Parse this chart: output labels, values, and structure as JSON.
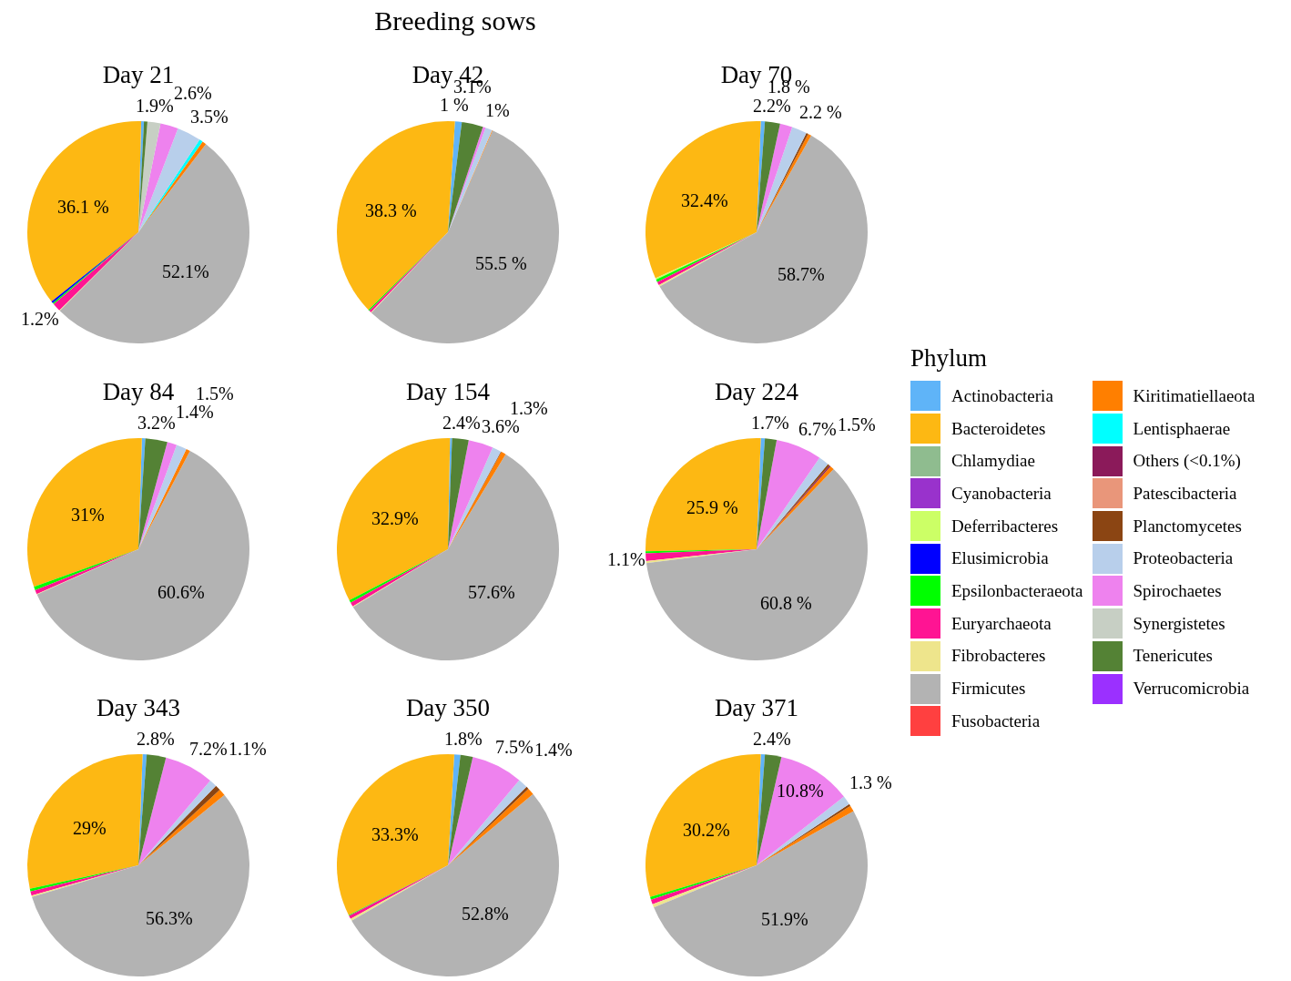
{
  "chart_data": {
    "type": "pie",
    "title": "Breeding sows",
    "legend": "right",
    "legend_title": "Phylum",
    "categories": [
      "Actinobacteria",
      "Bacteroidetes",
      "Chlamydiae",
      "Cyanobacteria",
      "Deferribacteres",
      "Elusimicrobia",
      "Epsilonbacteraeota",
      "Euryarchaeota",
      "Fibrobacteres",
      "Firmicutes",
      "Fusobacteria",
      "Kiritimatiellaeota",
      "Lentisphaerae",
      "Others (<0.1%)",
      "Patescibacteria",
      "Planctomycetes",
      "Proteobacteria",
      "Spirochaetes",
      "Synergistetes",
      "Tenericutes",
      "Verrucomicrobia"
    ],
    "colors": [
      "#5fb4f8",
      "#fdb813",
      "#8fbc8f",
      "#9932cc",
      "#ccff66",
      "#0000ff",
      "#00ff00",
      "#ff1493",
      "#eee58c",
      "#b3b3b3",
      "#ff4040",
      "#ff7f00",
      "#00ffff",
      "#8b1a5a",
      "#e9967a",
      "#8b4513",
      "#b8cfeb",
      "#ee82ee",
      "#c7cfc4",
      "#548235",
      "#9b30ff"
    ],
    "series": [
      {
        "name": "Day 21",
        "values": [
          0.4,
          36.1,
          0,
          0,
          0,
          0.3,
          0.2,
          1.2,
          0.1,
          52.1,
          0,
          0.6,
          0.5,
          0,
          0,
          0,
          3.5,
          2.6,
          1.9,
          0.5,
          0
        ],
        "value_labels": [
          null,
          "36.1 %",
          null,
          null,
          null,
          null,
          null,
          "1.2%",
          null,
          "52.1%",
          null,
          null,
          null,
          null,
          null,
          null,
          "3.5%",
          "2.6%",
          "1.9%",
          null,
          null
        ]
      },
      {
        "name": "Day 42",
        "values": [
          1,
          38.3,
          0,
          0,
          0,
          0,
          0.2,
          0.3,
          0.1,
          55.5,
          0,
          0.1,
          0,
          0,
          0,
          0,
          1,
          0.4,
          0,
          3.1,
          0
        ],
        "value_labels": [
          "1 %",
          "38.3 %",
          null,
          null,
          null,
          null,
          null,
          null,
          null,
          "55.5 %",
          null,
          null,
          null,
          null,
          null,
          null,
          "1%",
          null,
          null,
          "3.1%",
          null
        ]
      },
      {
        "name": "Day 70",
        "values": [
          0.6,
          32.4,
          0,
          0,
          0.2,
          0,
          0.4,
          0.5,
          0.2,
          58.7,
          0,
          0.5,
          0,
          0,
          0,
          0.3,
          2.2,
          1.8,
          0,
          2.2,
          0
        ],
        "value_labels": [
          null,
          "32.4%",
          null,
          null,
          null,
          null,
          null,
          null,
          null,
          "58.7%",
          null,
          null,
          null,
          null,
          null,
          null,
          "2.2 %",
          "1.8 %",
          null,
          "2.2%",
          null
        ]
      },
      {
        "name": "Day 84",
        "values": [
          0.5,
          31,
          0,
          0,
          0,
          0,
          0.5,
          0.6,
          0.1,
          60.6,
          0,
          0.6,
          0,
          0,
          0,
          0,
          1.5,
          1.4,
          0,
          3.2,
          0
        ],
        "value_labels": [
          null,
          "31%",
          null,
          null,
          null,
          null,
          null,
          null,
          null,
          "60.6%",
          null,
          null,
          null,
          null,
          null,
          null,
          "1.5%",
          "1.4%",
          null,
          "3.2%",
          null
        ]
      },
      {
        "name": "Day 154",
        "values": [
          0.3,
          32.9,
          0,
          0,
          0,
          0,
          0.4,
          0.6,
          0.1,
          57.6,
          0,
          0.7,
          0,
          0,
          0,
          0.1,
          1.3,
          3.6,
          0,
          2.4,
          0
        ],
        "value_labels": [
          null,
          "32.9%",
          null,
          null,
          null,
          null,
          null,
          null,
          null,
          "57.6%",
          null,
          null,
          null,
          null,
          null,
          null,
          "1.3%",
          "3.6%",
          null,
          "2.4%",
          null
        ]
      },
      {
        "name": "Day 224",
        "values": [
          0.6,
          25.9,
          0,
          0,
          0,
          0,
          0.3,
          1.1,
          0.3,
          60.8,
          0,
          0.6,
          0,
          0.2,
          0,
          0.3,
          1.5,
          6.7,
          0,
          1.7,
          0
        ],
        "value_labels": [
          null,
          "25.9 %",
          null,
          null,
          null,
          null,
          null,
          "1.1%",
          null,
          "60.8 %",
          null,
          null,
          null,
          null,
          null,
          null,
          "1.5%",
          "6.7%",
          null,
          "1.7%",
          null
        ]
      },
      {
        "name": "Day 343",
        "values": [
          0.6,
          29,
          0,
          0,
          0,
          0,
          0.4,
          0.6,
          0.2,
          56.3,
          0,
          1.0,
          0,
          0,
          0,
          0.8,
          1.1,
          7.2,
          0,
          2.8,
          0
        ],
        "value_labels": [
          null,
          "29%",
          null,
          null,
          null,
          null,
          null,
          null,
          null,
          "56.3%",
          null,
          null,
          null,
          null,
          null,
          null,
          "1.1%",
          "7.2%",
          null,
          "2.8%",
          null
        ]
      },
      {
        "name": "Day 350",
        "values": [
          0.9,
          33.3,
          0,
          0,
          0,
          0,
          0.1,
          0.5,
          0.3,
          52.8,
          0,
          1.0,
          0,
          0,
          0,
          0.4,
          1.4,
          7.5,
          0,
          1.8,
          0
        ],
        "value_labels": [
          null,
          "33.3%",
          null,
          null,
          null,
          null,
          null,
          null,
          null,
          "52.8%",
          null,
          null,
          null,
          null,
          null,
          null,
          "1.4%",
          "7.5%",
          null,
          "1.8%",
          null
        ]
      },
      {
        "name": "Day 371",
        "values": [
          0.6,
          30.2,
          0,
          0,
          0,
          0,
          0.4,
          0.7,
          0.5,
          51.9,
          0,
          0.9,
          0,
          0,
          0,
          0.3,
          1.3,
          10.8,
          0,
          2.4,
          0
        ],
        "value_labels": [
          null,
          "30.2%",
          null,
          null,
          null,
          null,
          null,
          null,
          null,
          "51.9%",
          null,
          null,
          null,
          null,
          null,
          null,
          "1.3 %",
          "10.8%",
          null,
          "2.4%",
          null
        ]
      }
    ]
  }
}
